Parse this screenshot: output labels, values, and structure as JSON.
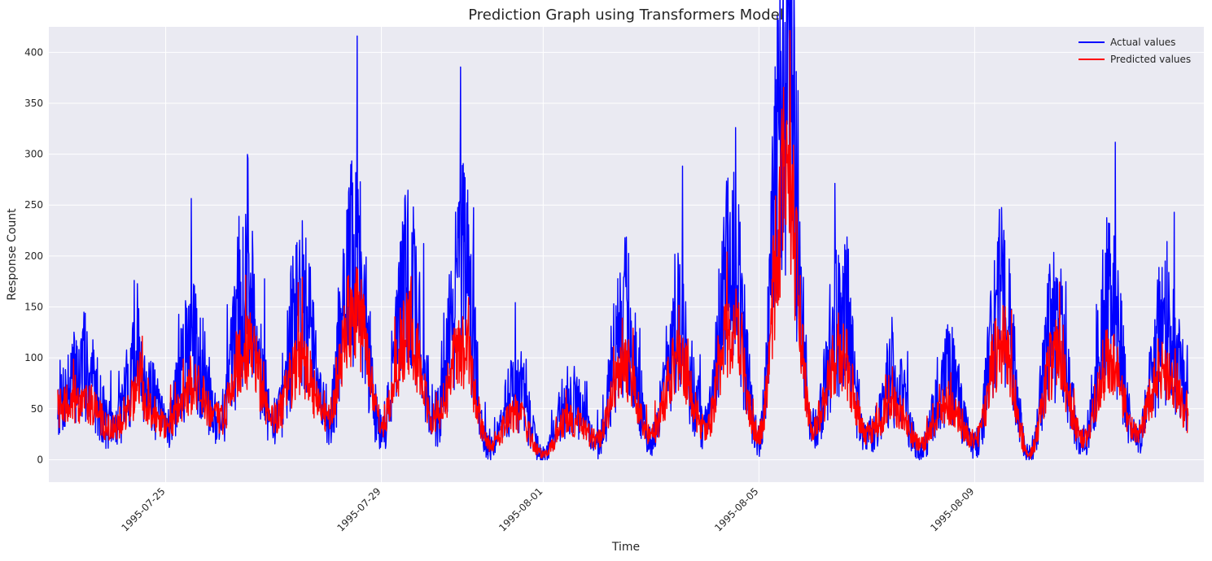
{
  "chart_data": {
    "type": "line",
    "title": "Prediction Graph using Transformers Model",
    "xlabel": "Time",
    "ylabel": "Response Count",
    "x_type": "datetime",
    "xlim": [
      "1995-07-22T20:00",
      "1995-08-13T06:00"
    ],
    "ylim": [
      -22,
      425
    ],
    "x_ticks": [
      "1995-07-25",
      "1995-07-29",
      "1995-08-01",
      "1995-08-05",
      "1995-08-09"
    ],
    "y_ticks": [
      0,
      50,
      100,
      150,
      200,
      250,
      300,
      350,
      400
    ],
    "grid": true,
    "legend": {
      "position": "top-right",
      "entries": [
        "Actual values",
        "Predicted values"
      ]
    },
    "colors": {
      "Actual values": "#0000ff",
      "Predicted values": "#ff0000",
      "background": "#eaeaf2",
      "grid": "#ffffff"
    },
    "x_range": [
      "1995-07-23T00:00",
      "1995-08-12T23:00"
    ],
    "series": [
      {
        "name": "Actual values",
        "color": "#0000ff",
        "x": [
          "1995-07-23T00:00",
          "1995-07-23T12:00",
          "1995-07-24T00:00",
          "1995-07-24T12:00",
          "1995-07-25T00:00",
          "1995-07-25T12:00",
          "1995-07-26T00:00",
          "1995-07-26T12:00",
          "1995-07-27T00:00",
          "1995-07-27T12:00",
          "1995-07-28T00:00",
          "1995-07-28T12:00",
          "1995-07-29T00:00",
          "1995-07-29T12:00",
          "1995-07-30T00:00",
          "1995-07-30T12:00",
          "1995-07-31T00:00",
          "1995-07-31T12:00",
          "1995-08-01T00:00",
          "1995-08-01T12:00",
          "1995-08-02T00:00",
          "1995-08-02T12:00",
          "1995-08-03T00:00",
          "1995-08-03T12:00",
          "1995-08-04T00:00",
          "1995-08-04T12:00",
          "1995-08-05T00:00",
          "1995-08-05T12:00",
          "1995-08-06T00:00",
          "1995-08-06T12:00",
          "1995-08-07T00:00",
          "1995-08-07T12:00",
          "1995-08-08T00:00",
          "1995-08-08T12:00",
          "1995-08-09T00:00",
          "1995-08-09T12:00",
          "1995-08-10T00:00",
          "1995-08-10T12:00",
          "1995-08-11T00:00",
          "1995-08-11T12:00",
          "1995-08-12T00:00",
          "1995-08-12T12:00",
          "1995-08-12T23:00"
        ],
        "y": [
          60,
          90,
          30,
          95,
          35,
          110,
          40,
          170,
          35,
          150,
          40,
          195,
          30,
          175,
          40,
          185,
          10,
          70,
          5,
          60,
          15,
          140,
          20,
          130,
          30,
          190,
          20,
          400,
          25,
          145,
          20,
          80,
          10,
          85,
          15,
          160,
          5,
          135,
          15,
          155,
          20,
          125,
          70
        ]
      },
      {
        "name": "Predicted values",
        "color": "#ff0000",
        "x": [
          "1995-07-23T00:00",
          "1995-07-23T12:00",
          "1995-07-24T00:00",
          "1995-07-24T12:00",
          "1995-07-25T00:00",
          "1995-07-25T12:00",
          "1995-07-26T00:00",
          "1995-07-26T12:00",
          "1995-07-27T00:00",
          "1995-07-27T12:00",
          "1995-07-28T00:00",
          "1995-07-28T12:00",
          "1995-07-29T00:00",
          "1995-07-29T12:00",
          "1995-07-30T00:00",
          "1995-07-30T12:00",
          "1995-07-31T00:00",
          "1995-07-31T12:00",
          "1995-08-01T00:00",
          "1995-08-01T12:00",
          "1995-08-02T00:00",
          "1995-08-02T12:00",
          "1995-08-03T00:00",
          "1995-08-03T12:00",
          "1995-08-04T00:00",
          "1995-08-04T12:00",
          "1995-08-05T00:00",
          "1995-08-05T12:00",
          "1995-08-06T00:00",
          "1995-08-06T12:00",
          "1995-08-07T00:00",
          "1995-08-07T12:00",
          "1995-08-08T00:00",
          "1995-08-08T12:00",
          "1995-08-09T00:00",
          "1995-08-09T12:00",
          "1995-08-10T00:00",
          "1995-08-10T12:00",
          "1995-08-11T00:00",
          "1995-08-11T12:00",
          "1995-08-12T00:00",
          "1995-08-12T12:00",
          "1995-08-12T23:00"
        ],
        "y": [
          50,
          60,
          30,
          65,
          35,
          70,
          40,
          110,
          40,
          95,
          40,
          150,
          35,
          125,
          40,
          110,
          15,
          45,
          5,
          40,
          20,
          90,
          25,
          95,
          30,
          130,
          25,
          275,
          30,
          105,
          25,
          55,
          15,
          55,
          20,
          115,
          5,
          100,
          20,
          100,
          25,
          95,
          45
        ]
      }
    ]
  }
}
